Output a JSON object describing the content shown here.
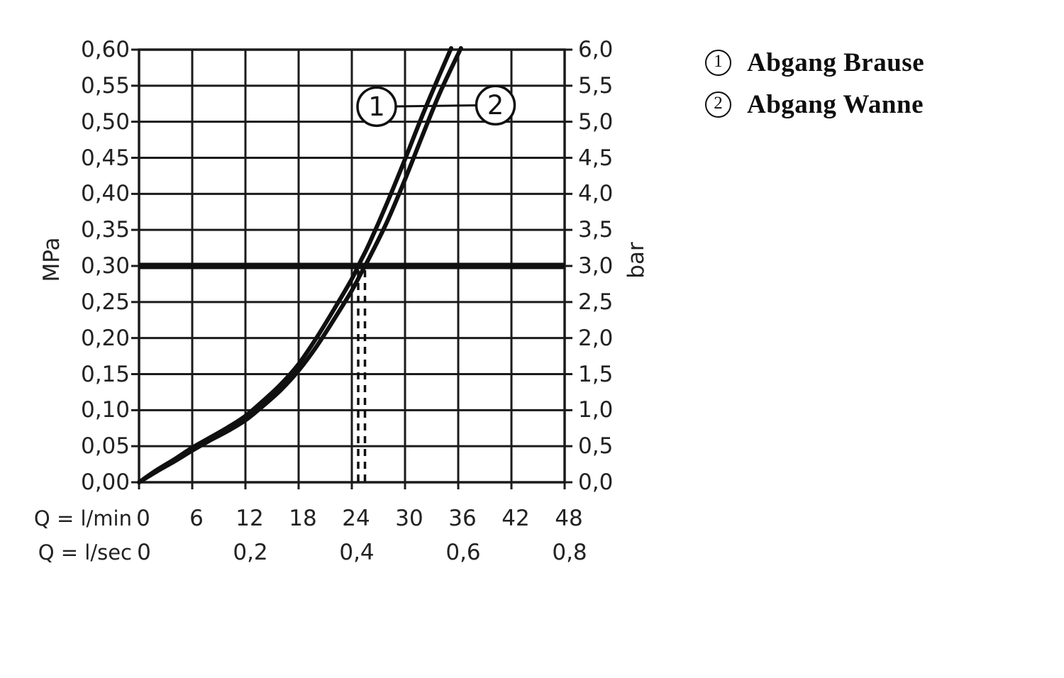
{
  "axes": {
    "left_unit": "MPa",
    "right_unit": "bar",
    "flow_min_label": "Q = l/min",
    "flow_sec_label": "Q = l/sec"
  },
  "legend": {
    "items": [
      {
        "marker": "1",
        "label": "Abgang Brause"
      },
      {
        "marker": "2",
        "label": "Abgang Wanne"
      }
    ]
  },
  "chart_data": {
    "type": "line",
    "title": "",
    "x_axis": {
      "label_primary": "Q = l/min",
      "ticks_primary": {
        "labels": [
          "0",
          "6",
          "12",
          "18",
          "24",
          "30",
          "36",
          "42",
          "48"
        ],
        "q": [
          0,
          6,
          12,
          18,
          24,
          30,
          36,
          42,
          48
        ]
      },
      "label_secondary": "Q = l/sec",
      "ticks_secondary": {
        "labels": [
          "0",
          "0,2",
          "0,4",
          "0,6",
          "0,8"
        ],
        "q": [
          0,
          12,
          24,
          36,
          48
        ]
      },
      "range": [
        0,
        48
      ],
      "gridline_step": 6
    },
    "y_axis_left": {
      "unit": "MPa",
      "tick_labels": [
        "0,60",
        "0,55",
        "0,50",
        "0,45",
        "0,40",
        "0,35",
        "0,30",
        "0,25",
        "0,20",
        "0,15",
        "0,10",
        "0,05",
        "0,00"
      ],
      "tick_values": [
        0.6,
        0.55,
        0.5,
        0.45,
        0.4,
        0.35,
        0.3,
        0.25,
        0.2,
        0.15,
        0.1,
        0.05,
        0.0
      ],
      "range": [
        0,
        0.6
      ],
      "gridline_step": 0.05
    },
    "y_axis_right": {
      "unit": "bar",
      "tick_labels": [
        "6,0",
        "5,5",
        "5,0",
        "4,5",
        "4,0",
        "3,5",
        "3,0",
        "2,5",
        "2,0",
        "1,5",
        "1,0",
        "0,5",
        "0,0"
      ],
      "tick_values": [
        6.0,
        5.5,
        5.0,
        4.5,
        4.0,
        3.5,
        3.0,
        2.5,
        2.0,
        1.5,
        1.0,
        0.5,
        0.0
      ]
    },
    "grid": {
      "on": true
    },
    "reference_line": {
      "mpa": 0.3,
      "bar": 3.0
    },
    "drop_lines": {
      "style": "dashed",
      "from_mpa": 0.3,
      "q_values": [
        24.72,
        25.48
      ]
    },
    "series": [
      {
        "marker": "1",
        "name": "Abgang Brause",
        "points_q_mpa": [
          [
            0,
            0
          ],
          [
            2,
            0.017
          ],
          [
            4,
            0.032
          ],
          [
            6,
            0.048
          ],
          [
            8,
            0.062
          ],
          [
            10,
            0.076
          ],
          [
            12,
            0.092
          ],
          [
            14,
            0.113
          ],
          [
            16,
            0.136
          ],
          [
            18,
            0.164
          ],
          [
            20,
            0.2
          ],
          [
            22,
            0.24
          ],
          [
            24,
            0.282
          ],
          [
            25,
            0.307
          ],
          [
            26,
            0.332
          ],
          [
            28,
            0.388
          ],
          [
            30,
            0.448
          ],
          [
            32,
            0.51
          ],
          [
            34,
            0.568
          ],
          [
            35.2,
            0.602
          ]
        ]
      },
      {
        "marker": "2",
        "name": "Abgang Wanne",
        "points_q_mpa": [
          [
            0,
            0
          ],
          [
            2,
            0.015
          ],
          [
            4,
            0.029
          ],
          [
            6,
            0.044
          ],
          [
            8,
            0.058
          ],
          [
            10,
            0.071
          ],
          [
            12,
            0.086
          ],
          [
            14,
            0.106
          ],
          [
            16,
            0.128
          ],
          [
            18,
            0.155
          ],
          [
            20,
            0.188
          ],
          [
            22,
            0.226
          ],
          [
            24,
            0.266
          ],
          [
            25,
            0.289
          ],
          [
            26,
            0.312
          ],
          [
            28,
            0.362
          ],
          [
            30,
            0.42
          ],
          [
            32,
            0.482
          ],
          [
            34,
            0.542
          ],
          [
            36.3,
            0.602
          ]
        ]
      }
    ],
    "callouts": [
      {
        "marker": "1",
        "q": 26.8,
        "mpa": 0.521
      },
      {
        "marker": "2",
        "q": 40.2,
        "mpa": 0.523
      }
    ],
    "colors": {
      "line": "#101010",
      "grid": "#1b1b1b",
      "background": "#ffffff"
    }
  }
}
